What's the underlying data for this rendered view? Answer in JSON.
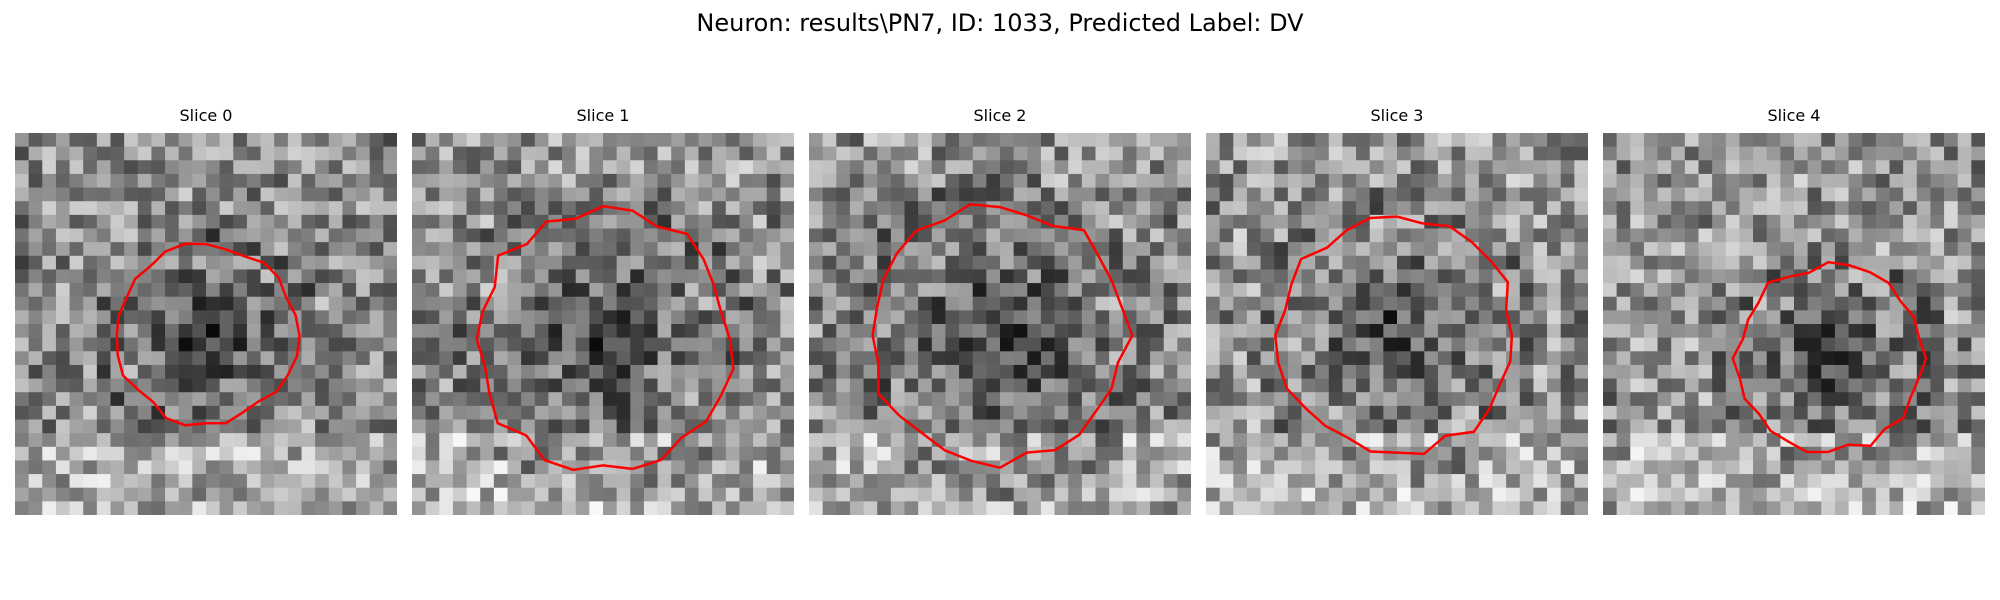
{
  "figure": {
    "title": "Neuron: results\\PN7, ID: 1033, Predicted Label: DV"
  },
  "overlay": {
    "contour_color": "#ff0000"
  },
  "slices": [
    {
      "title": "Slice 0",
      "contour_scale": 0.7,
      "contour_center": [
        0.5,
        0.53
      ],
      "contour_seed": 11,
      "brightness": 0.55
    },
    {
      "title": "Slice 1",
      "contour_scale": 1.0,
      "contour_center": [
        0.5,
        0.54
      ],
      "contour_seed": 23,
      "brightness": 0.58
    },
    {
      "title": "Slice 2",
      "contour_scale": 1.0,
      "contour_center": [
        0.5,
        0.53
      ],
      "contour_seed": 37,
      "brightness": 0.57
    },
    {
      "title": "Slice 3",
      "contour_scale": 0.92,
      "contour_center": [
        0.5,
        0.53
      ],
      "contour_seed": 41,
      "brightness": 0.59
    },
    {
      "title": "Slice 4",
      "contour_scale": 0.73,
      "contour_center": [
        0.59,
        0.59
      ],
      "contour_seed": 53,
      "brightness": 0.58
    }
  ]
}
